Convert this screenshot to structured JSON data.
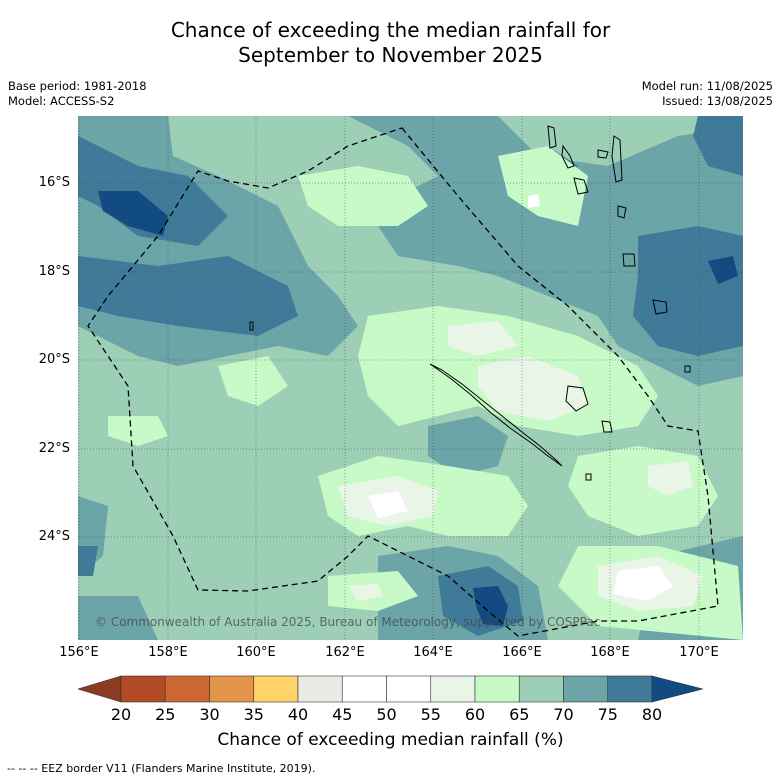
{
  "title_line1": "Chance of exceeding the median rainfall for",
  "title_line2": "September to November 2025",
  "meta_left": {
    "base_period": "Base period: 1981-2018",
    "model": "Model: ACCESS-S2"
  },
  "meta_right": {
    "model_run": "Model run: 11/08/2025",
    "issued": "Issued: 13/08/2025"
  },
  "copyright": "© Commonwealth of Australia 2025, Bureau of Meteorology, supported by COSPPac",
  "lat_labels": [
    "16°S",
    "18°S",
    "20°S",
    "22°S",
    "24°S"
  ],
  "lon_labels": [
    "156°E",
    "158°E",
    "160°E",
    "162°E",
    "164°E",
    "166°E",
    "168°E",
    "170°E"
  ],
  "colorbar": {
    "ticks": [
      "20",
      "25",
      "30",
      "35",
      "40",
      "45",
      "50",
      "55",
      "60",
      "65",
      "70",
      "75",
      "80"
    ],
    "under_color": "#8c3a21",
    "over_color": "#124a82",
    "colors": [
      "#b24a26",
      "#cc6633",
      "#e39549",
      "#ffd36a",
      "#ebebe6",
      "#ffffff",
      "#ffffff",
      "#e9f5e6",
      "#c8fac8",
      "#9ccfb6",
      "#6ba5a8",
      "#3f7a98"
    ],
    "label": "Chance of exceeding median rainfall (%)"
  },
  "footer": "--  --  -- EEZ border V11 (Flanders Marine Institute, 2019)."
}
